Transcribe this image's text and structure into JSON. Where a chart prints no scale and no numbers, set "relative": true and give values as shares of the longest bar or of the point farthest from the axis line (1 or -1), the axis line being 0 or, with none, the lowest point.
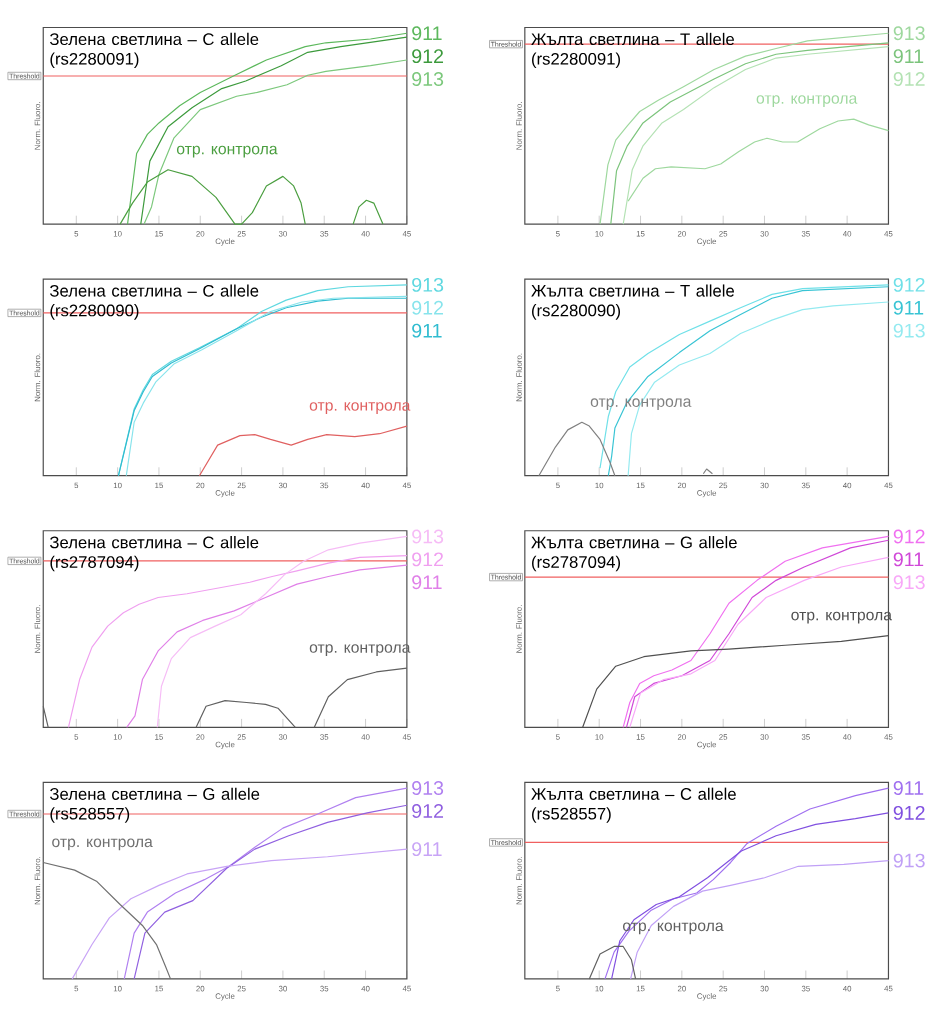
{
  "chart_data": [
    {
      "type": "line",
      "title": "Зелена светлина – C allele (rs2280091)",
      "xlabel": "Cycle",
      "ylabel": "Norm. Fluoro.",
      "relative": true,
      "xlim": [
        1,
        45
      ],
      "xticks": [
        5,
        10,
        15,
        20,
        25,
        30,
        35,
        40,
        45
      ],
      "ref_lines": [
        {
          "axis": "y",
          "value": 0.776,
          "label": "Threshold",
          "color": "#f06060"
        }
      ],
      "series": [
        {
          "name": "911",
          "color": "#5cb85c",
          "x": [
            11.2,
            12.3,
            13.6,
            15,
            17.5,
            20,
            24.2,
            28,
            32.7,
            35.2,
            40.6,
            45
          ],
          "values": [
            0,
            0.37,
            0.47,
            0.53,
            0.62,
            0.69,
            0.78,
            0.86,
            0.93,
            0.95,
            0.97,
            1.0
          ]
        },
        {
          "name": "912",
          "color": "#3c9a3c",
          "x": [
            12.8,
            13.9,
            16.1,
            19,
            22.6,
            25.5,
            29.8,
            33,
            37,
            45
          ],
          "values": [
            0,
            0.33,
            0.51,
            0.61,
            0.71,
            0.75,
            0.83,
            0.9,
            0.93,
            0.98
          ]
        },
        {
          "name": "913",
          "color": "#7cc87c",
          "x": [
            13.2,
            14.1,
            15,
            16.8,
            20,
            24.4,
            26.9,
            30.5,
            33,
            35.2,
            40.6,
            45
          ],
          "values": [
            0,
            0.09,
            0.26,
            0.45,
            0.6,
            0.67,
            0.69,
            0.73,
            0.78,
            0.8,
            0.83,
            0.86
          ]
        },
        {
          "name": "отр. контрола",
          "color": "#4a9e3f",
          "x": [
            10.3,
            11.8,
            13.6,
            16.1,
            19,
            21.9,
            24.2,
            25,
            26.3,
            28,
            30,
            31.3,
            32.2,
            32.7,
            35,
            38.5,
            39.2,
            40.1,
            41,
            42.1
          ],
          "values": [
            0,
            0.11,
            0.22,
            0.285,
            0.25,
            0.14,
            0,
            0,
            0.06,
            0.2,
            0.25,
            0.2,
            0.11,
            0,
            null,
            0,
            0.09,
            0.125,
            0.11,
            0
          ]
        }
      ]
    },
    {
      "type": "line",
      "title": "Жълта светлина – T allele (rs2280091)",
      "xlabel": "Cycle",
      "ylabel": "Norm. Fluoro.",
      "relative": true,
      "xlim": [
        1,
        45
      ],
      "xticks": [
        5,
        10,
        15,
        20,
        25,
        30,
        35,
        40,
        45
      ],
      "ref_lines": [
        {
          "axis": "y",
          "value": 0.943,
          "label": "Threshold",
          "color": "#f06060"
        }
      ],
      "series": [
        {
          "name": "913",
          "color": "#9ed89e",
          "x": [
            10.1,
            11.05,
            12,
            13.4,
            14.9,
            17.2,
            20.2,
            23.9,
            27.7,
            31.4,
            35.2,
            45
          ],
          "values": [
            0,
            0.31,
            0.44,
            0.515,
            0.59,
            0.65,
            0.72,
            0.81,
            0.88,
            0.92,
            0.96,
            1.0
          ]
        },
        {
          "name": "911",
          "color": "#7cc47c",
          "x": [
            11.4,
            12.1,
            13.4,
            15.3,
            18.6,
            23.9,
            27.7,
            31.4,
            35.2,
            45
          ],
          "values": [
            0,
            0.28,
            0.41,
            0.53,
            0.64,
            0.76,
            0.84,
            0.89,
            0.91,
            0.95
          ]
        },
        {
          "name": "912",
          "color": "#b4e2b4",
          "x": [
            12.9,
            14,
            15.3,
            17.6,
            20.2,
            23.9,
            27.7,
            31.4,
            35.2,
            45
          ],
          "values": [
            0,
            0.285,
            0.41,
            0.53,
            0.6,
            0.715,
            0.81,
            0.87,
            0.89,
            0.93
          ]
        },
        {
          "name": "отр. контрола",
          "color": "#9ed89e",
          "x": [
            13.5,
            15.3,
            16.8,
            18.7,
            22.8,
            24.7,
            26.9,
            28.8,
            30.3,
            32.2,
            34,
            36.7,
            38.9,
            40.8,
            42.6,
            45
          ],
          "values": [
            0.12,
            0.24,
            0.29,
            0.3,
            0.29,
            0.315,
            0.38,
            0.43,
            0.45,
            0.43,
            0.43,
            0.5,
            0.54,
            0.55,
            0.52,
            0.49
          ]
        }
      ]
    },
    {
      "type": "line",
      "title": "Зелена светлина – C allele (rs2280090)",
      "xlabel": "Cycle",
      "ylabel": "Norm. Fluoro.",
      "relative": true,
      "xlim": [
        1,
        45
      ],
      "xticks": [
        5,
        10,
        15,
        20,
        25,
        30,
        35,
        40,
        45
      ],
      "ref_lines": [
        {
          "axis": "y",
          "value": 0.853,
          "label": "Threshold",
          "color": "#f06060"
        }
      ],
      "series": [
        {
          "name": "913",
          "color": "#5fd8e0",
          "x": [
            10.1,
            12,
            13.1,
            14.2,
            16.5,
            19.9,
            24.4,
            27.4,
            30.4,
            34.2,
            37.9,
            45
          ],
          "values": [
            0,
            0.35,
            0.45,
            0.53,
            0.6,
            0.67,
            0.77,
            0.86,
            0.92,
            0.97,
            0.99,
            1.0
          ]
        },
        {
          "name": "911",
          "color": "#30bcd0",
          "x": [
            10.1,
            12,
            13.1,
            14.2,
            16.5,
            19.9,
            24.4,
            27.4,
            30.4,
            34.2,
            37.9,
            45
          ],
          "values": [
            0,
            0.34,
            0.44,
            0.52,
            0.59,
            0.665,
            0.77,
            0.83,
            0.88,
            0.915,
            0.93,
            0.93
          ]
        },
        {
          "name": "912",
          "color": "#88e4ec",
          "x": [
            11.05,
            12,
            13.1,
            14.6,
            16.8,
            20.2,
            24.4,
            28.5,
            32.3,
            36.1,
            45
          ],
          "values": [
            0,
            0.28,
            0.38,
            0.49,
            0.585,
            0.66,
            0.76,
            0.86,
            0.91,
            0.93,
            0.94
          ]
        },
        {
          "name": "отр. контрола",
          "color": "#e06060",
          "x": [
            19.9,
            22.1,
            24.8,
            26.6,
            28.5,
            31,
            33,
            35.3,
            38.7,
            41.7,
            45
          ],
          "values": [
            0,
            0.16,
            0.21,
            0.215,
            0.19,
            0.16,
            0.19,
            0.215,
            0.205,
            0.22,
            0.26
          ]
        }
      ]
    },
    {
      "type": "line",
      "title": "Жълта светлина – T allele (rs2280090)",
      "xlabel": "Cycle",
      "ylabel": "Norm. Fluoro.",
      "relative": true,
      "xlim": [
        1,
        45
      ],
      "xticks": [
        5,
        10,
        15,
        20,
        25,
        30,
        35,
        40,
        45
      ],
      "series": [
        {
          "name": "912",
          "color": "#6fe0e8",
          "x": [
            10.1,
            11.1,
            12,
            13.7,
            15.9,
            19.7,
            23.4,
            27.1,
            30.9,
            34.6,
            45
          ],
          "values": [
            0.04,
            0.31,
            0.44,
            0.57,
            0.64,
            0.74,
            0.81,
            0.88,
            0.95,
            0.98,
            1.0
          ]
        },
        {
          "name": "911",
          "color": "#38c4d4",
          "x": [
            11.1,
            11.5,
            11.9,
            13.3,
            15.9,
            19.7,
            23.4,
            27.1,
            30.9,
            34.6,
            45
          ],
          "values": [
            0,
            0.1,
            0.25,
            0.38,
            0.52,
            0.645,
            0.76,
            0.845,
            0.93,
            0.97,
            0.99
          ]
        },
        {
          "name": "913",
          "color": "#94eaf0",
          "x": [
            13.5,
            13.9,
            14.9,
            16.7,
            19.7,
            23.4,
            27.1,
            30.9,
            34.6,
            38.3,
            45
          ],
          "values": [
            0,
            0.22,
            0.37,
            0.49,
            0.58,
            0.64,
            0.745,
            0.815,
            0.87,
            0.89,
            0.91
          ]
        },
        {
          "name": "отр. контрола",
          "color": "#808080",
          "x": [
            2.7,
            4.7,
            6.2,
            7.9,
            8.8,
            10.1,
            11.3,
            11.9,
            17,
            22.6,
            23,
            23.7
          ],
          "values": [
            0,
            0.15,
            0.24,
            0.28,
            0.26,
            0.19,
            0.07,
            0,
            null,
            0.01,
            0.035,
            0.01
          ]
        }
      ]
    },
    {
      "type": "line",
      "title": "Зелена светлина – C allele (rs2787094)",
      "xlabel": "Cycle",
      "ylabel": "Norm. Fluoro.",
      "relative": true,
      "xlim": [
        1,
        45
      ],
      "xticks": [
        5,
        10,
        15,
        20,
        25,
        30,
        35,
        40,
        45
      ],
      "ref_lines": [
        {
          "axis": "y",
          "value": 0.872,
          "label": "Threshold",
          "color": "#f06060"
        }
      ],
      "series": [
        {
          "name": "912",
          "color": "#f0a0f0",
          "x": [
            4.05,
            5.4,
            6.9,
            8.8,
            10.7,
            12.6,
            14.9,
            18.4,
            22.2,
            26,
            28.7,
            31.7,
            35.5,
            39.3,
            45
          ],
          "values": [
            0,
            0.25,
            0.42,
            0.53,
            0.6,
            0.645,
            0.68,
            0.7,
            0.73,
            0.76,
            0.79,
            0.82,
            0.86,
            0.89,
            0.9
          ]
        },
        {
          "name": "911",
          "color": "#e080e8",
          "x": [
            11.1,
            12.1,
            13,
            14.9,
            17.2,
            20.3,
            24.1,
            27.9,
            31.7,
            35.5,
            39.3,
            45
          ],
          "values": [
            0,
            0.06,
            0.25,
            0.4,
            0.5,
            0.56,
            0.61,
            0.68,
            0.75,
            0.79,
            0.825,
            0.85
          ]
        },
        {
          "name": "913",
          "color": "#f6bcf6",
          "x": [
            14.8,
            15.3,
            16.5,
            18.8,
            21.8,
            24.9,
            27.9,
            30.2,
            32.5,
            35.5,
            39.3,
            45
          ],
          "values": [
            0,
            0.215,
            0.36,
            0.47,
            0.53,
            0.59,
            0.7,
            0.8,
            0.87,
            0.93,
            0.965,
            1.0
          ]
        },
        {
          "name": "отр. контрола",
          "color": "#606060",
          "x": [
            1,
            1.6,
            10,
            19.5,
            20.7,
            23,
            25.6,
            27.9,
            29.4,
            31.5,
            32.5,
            33.8,
            35.5,
            37.8,
            41.3,
            45
          ],
          "values": [
            0.11,
            0,
            null,
            0,
            0.11,
            0.14,
            0.13,
            0.12,
            0.1,
            0,
            null,
            0,
            0.16,
            0.25,
            0.29,
            0.31
          ]
        }
      ]
    },
    {
      "type": "line",
      "title": "Жълта светлина – G allele (rs2787094)",
      "xlabel": "Cycle",
      "ylabel": "Norm. Fluoro.",
      "relative": true,
      "xlim": [
        1,
        45
      ],
      "xticks": [
        5,
        10,
        15,
        20,
        25,
        30,
        35,
        40,
        45
      ],
      "ref_lines": [
        {
          "axis": "y",
          "value": 0.787,
          "label": "Threshold",
          "color": "#f06060"
        }
      ],
      "series": [
        {
          "name": "912",
          "color": "#f070f0",
          "x": [
            12.9,
            13.7,
            14.9,
            16.6,
            18.8,
            21.1,
            23.4,
            25.7,
            29.1,
            32.5,
            37,
            45
          ],
          "values": [
            0,
            0.13,
            0.23,
            0.27,
            0.3,
            0.35,
            0.49,
            0.65,
            0.77,
            0.87,
            0.94,
            1.0
          ]
        },
        {
          "name": "911",
          "color": "#d048d8",
          "x": [
            13.3,
            14.3,
            16.6,
            20,
            23.4,
            25.7,
            28.5,
            31.4,
            34.8,
            40.4,
            45
          ],
          "values": [
            0,
            0.16,
            0.23,
            0.27,
            0.35,
            0.49,
            0.68,
            0.77,
            0.84,
            0.94,
            0.98
          ]
        },
        {
          "name": "913",
          "color": "#f8a8f8",
          "x": [
            13.7,
            15,
            17.8,
            21.1,
            24,
            26.8,
            30.2,
            34.8,
            39.3,
            45
          ],
          "values": [
            0,
            0.18,
            0.25,
            0.28,
            0.35,
            0.54,
            0.68,
            0.77,
            0.84,
            0.89
          ]
        },
        {
          "name": "отр. контрола",
          "color": "#505050",
          "x": [
            8,
            9.7,
            12,
            15.4,
            21.1,
            25.7,
            32.5,
            39.3,
            45
          ],
          "values": [
            0,
            0.2,
            0.32,
            0.37,
            0.4,
            0.41,
            0.43,
            0.45,
            0.48
          ]
        }
      ]
    },
    {
      "type": "line",
      "title": "Зелена светлина – G allele (rs528557)",
      "xlabel": "Cycle",
      "ylabel": "Norm. Fluoro.",
      "relative": true,
      "xlim": [
        1,
        45
      ],
      "xticks": [
        5,
        10,
        15,
        20,
        25,
        30,
        35,
        40,
        45
      ],
      "ref_lines": [
        {
          "axis": "y",
          "value": 0.864,
          "label": "Threshold",
          "color": "#f06060"
        }
      ],
      "series": [
        {
          "name": "913",
          "color": "#b080f0",
          "x": [
            10.8,
            12,
            13.6,
            17,
            20.5,
            23.5,
            26.6,
            30,
            34,
            38.8,
            45
          ],
          "values": [
            0,
            0.24,
            0.35,
            0.45,
            0.52,
            0.59,
            0.69,
            0.79,
            0.86,
            0.95,
            1.0
          ]
        },
        {
          "name": "912",
          "color": "#9060e0",
          "x": [
            12,
            13.3,
            15.7,
            19.1,
            23.2,
            26.6,
            30.7,
            35.4,
            40.2,
            45
          ],
          "values": [
            0,
            0.24,
            0.35,
            0.41,
            0.58,
            0.68,
            0.75,
            0.82,
            0.87,
            0.91
          ]
        },
        {
          "name": "911",
          "color": "#c8a4f6",
          "x": [
            4.5,
            6.9,
            9,
            11.6,
            15,
            18.4,
            23.2,
            28.6,
            35.4,
            45
          ],
          "values": [
            0,
            0.18,
            0.32,
            0.42,
            0.49,
            0.55,
            0.59,
            0.62,
            0.64,
            0.68
          ]
        },
        {
          "name": "отр. контрола",
          "color": "#707070",
          "x": [
            1,
            4.8,
            7.5,
            10.3,
            13,
            14.7,
            15.8,
            16.4
          ],
          "values": [
            0.61,
            0.57,
            0.51,
            0.39,
            0.28,
            0.18,
            0.065,
            0
          ]
        }
      ]
    },
    {
      "type": "line",
      "title": "Жълта светлина – C allele (rs528557)",
      "xlabel": "Cycle",
      "ylabel": "Norm. Fluoro.",
      "relative": true,
      "xlim": [
        1,
        45
      ],
      "xticks": [
        5,
        10,
        15,
        20,
        25,
        30,
        35,
        40,
        45
      ],
      "ref_lines": [
        {
          "axis": "y",
          "value": 0.715,
          "label": "Threshold",
          "color": "#f06060"
        }
      ],
      "series": [
        {
          "name": "911",
          "color": "#a070f0",
          "x": [
            10.7,
            11.8,
            13.6,
            16.3,
            19,
            21.8,
            23.8,
            25.9,
            27.9,
            31.4,
            35.5,
            41,
            45
          ],
          "values": [
            0,
            0.14,
            0.25,
            0.36,
            0.42,
            0.45,
            0.52,
            0.61,
            0.71,
            0.8,
            0.89,
            0.96,
            1.0
          ]
        },
        {
          "name": "912",
          "color": "#8050e0",
          "x": [
            11.5,
            12.5,
            14.2,
            16.9,
            19.7,
            23.1,
            27.2,
            31.4,
            36.2,
            41,
            45
          ],
          "values": [
            0,
            0.2,
            0.31,
            0.39,
            0.43,
            0.53,
            0.67,
            0.75,
            0.81,
            0.84,
            0.87
          ]
        },
        {
          "name": "913",
          "color": "#c0a0f6",
          "x": [
            13.8,
            14.6,
            16.3,
            19,
            22.5,
            25.9,
            30,
            34.1,
            39.6,
            45
          ],
          "values": [
            0,
            0.14,
            0.28,
            0.38,
            0.46,
            0.49,
            0.53,
            0.59,
            0.6,
            0.62
          ]
        },
        {
          "name": "отр. контрола",
          "color": "#606060",
          "x": [
            8.8,
            10.1,
            11.8,
            12.9,
            13.9,
            14.4
          ],
          "values": [
            0,
            0.13,
            0.17,
            0.17,
            0.1,
            0
          ]
        }
      ]
    }
  ]
}
